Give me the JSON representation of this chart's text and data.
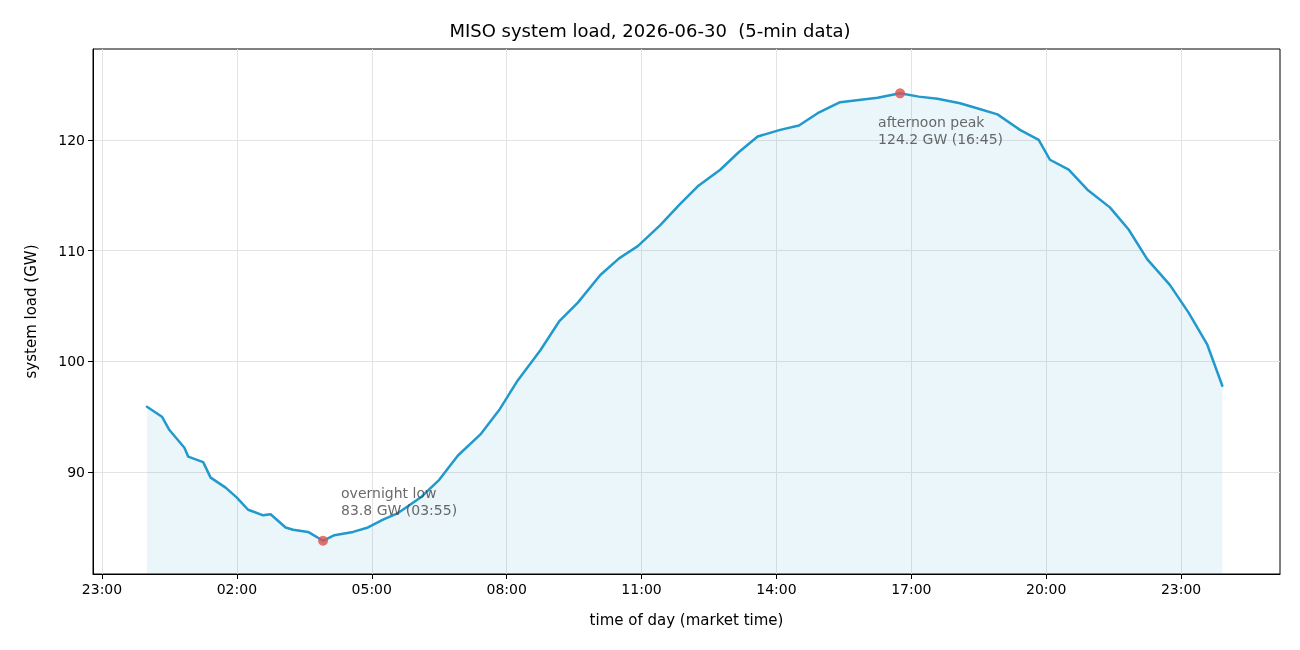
{
  "chart_data": {
    "type": "area",
    "title": "MISO system load, 2026-06-30  (5-min data)",
    "xlabel": "time of day (market time)",
    "ylabel": "system load (GW)",
    "xlim": [
      "2026-06-29T22:48",
      "2026-07-01T01:12"
    ],
    "ylim": [
      80.8,
      128.2
    ],
    "xticks": [
      {
        "value": "2026-06-29T23:00",
        "label": "23:00"
      },
      {
        "value": "2026-06-30T02:00",
        "label": "02:00"
      },
      {
        "value": "2026-06-30T05:00",
        "label": "05:00"
      },
      {
        "value": "2026-06-30T08:00",
        "label": "08:00"
      },
      {
        "value": "2026-06-30T11:00",
        "label": "11:00"
      },
      {
        "value": "2026-06-30T14:00",
        "label": "14:00"
      },
      {
        "value": "2026-06-30T17:00",
        "label": "17:00"
      },
      {
        "value": "2026-06-30T20:00",
        "label": "20:00"
      },
      {
        "value": "2026-06-30T23:00",
        "label": "23:00"
      }
    ],
    "yticks": [
      90,
      100,
      110,
      120
    ],
    "grid": true,
    "marker": "none",
    "line_style": "solid",
    "series": [
      {
        "color": "#2299cc",
        "x": [
          "2026-06-30T00:00",
          "2026-06-30T00:20",
          "2026-06-30T00:30",
          "2026-06-30T00:50",
          "2026-06-30T00:55",
          "2026-06-30T01:15",
          "2026-06-30T01:25",
          "2026-06-30T01:45",
          "2026-06-30T02:00",
          "2026-06-30T02:15",
          "2026-06-30T02:35",
          "2026-06-30T02:45",
          "2026-06-30T03:05",
          "2026-06-30T03:15",
          "2026-06-30T03:35",
          "2026-06-30T03:55",
          "2026-06-30T04:10",
          "2026-06-30T04:35",
          "2026-06-30T04:55",
          "2026-06-30T05:15",
          "2026-06-30T05:35",
          "2026-06-30T06:05",
          "2026-06-30T06:30",
          "2026-06-30T06:55",
          "2026-06-30T07:25",
          "2026-06-30T07:50",
          "2026-06-30T08:15",
          "2026-06-30T08:45",
          "2026-06-30T09:10",
          "2026-06-30T09:35",
          "2026-06-30T10:05",
          "2026-06-30T10:30",
          "2026-06-30T10:55",
          "2026-06-30T11:25",
          "2026-06-30T11:50",
          "2026-06-30T12:15",
          "2026-06-30T12:45",
          "2026-06-30T13:10",
          "2026-06-30T13:35",
          "2026-06-30T14:05",
          "2026-06-30T14:30",
          "2026-06-30T14:55",
          "2026-06-30T15:25",
          "2026-06-30T15:50",
          "2026-06-30T16:15",
          "2026-06-30T16:45",
          "2026-06-30T17:10",
          "2026-06-30T17:35",
          "2026-06-30T18:05",
          "2026-06-30T18:30",
          "2026-06-30T18:55",
          "2026-06-30T19:25",
          "2026-06-30T19:50",
          "2026-06-30T20:05",
          "2026-06-30T20:30",
          "2026-06-30T20:55",
          "2026-06-30T21:25",
          "2026-06-30T21:50",
          "2026-06-30T22:15",
          "2026-06-30T22:45",
          "2026-06-30T23:10",
          "2026-06-30T23:35",
          "2026-06-30T23:55"
        ],
        "values": [
          95.9,
          95.0,
          93.8,
          92.2,
          91.4,
          90.9,
          89.5,
          88.6,
          87.7,
          86.6,
          86.1,
          86.2,
          85.0,
          84.8,
          84.6,
          83.8,
          84.3,
          84.6,
          85.0,
          85.7,
          86.3,
          87.7,
          89.3,
          91.5,
          93.4,
          95.6,
          98.3,
          101.0,
          103.6,
          105.3,
          107.8,
          109.3,
          110.4,
          112.3,
          114.1,
          115.8,
          117.3,
          118.9,
          120.3,
          120.9,
          121.3,
          122.4,
          123.4,
          123.6,
          123.8,
          124.2,
          123.9,
          123.7,
          123.3,
          122.8,
          122.3,
          120.9,
          120.0,
          118.2,
          117.3,
          115.5,
          113.9,
          111.9,
          109.2,
          106.9,
          104.4,
          101.5,
          97.8
        ]
      },
      {
        "type": "scatter",
        "color": "#d9534f",
        "marker": "circle",
        "x": [
          "2026-06-30T03:55",
          "2026-06-30T16:45"
        ],
        "values": [
          83.8,
          124.2
        ]
      }
    ],
    "annotations": [
      {
        "text": "overnight low\n83.8 GW (03:55)",
        "x": "2026-06-30T03:55",
        "y": 83.8
      },
      {
        "text": "afternoon peak\n124.2 GW (16:45)",
        "x": "2026-06-30T16:45",
        "y": 124.2
      }
    ]
  }
}
